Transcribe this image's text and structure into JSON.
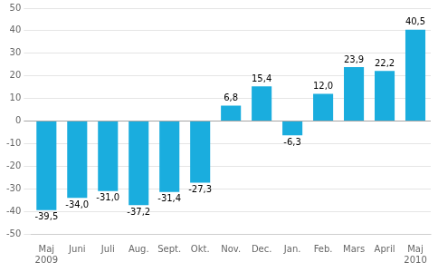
{
  "chart_data": {
    "type": "bar",
    "categories": [
      "Maj",
      "Juni",
      "Juli",
      "Aug.",
      "Sept.",
      "Okt.",
      "Nov.",
      "Dec.",
      "Jan.",
      "Feb.",
      "Mars",
      "April",
      "Maj"
    ],
    "values": [
      -39.5,
      -34.0,
      -31.0,
      -37.2,
      -31.4,
      -27.3,
      6.8,
      15.4,
      -6.3,
      12.0,
      23.9,
      22.2,
      40.5
    ],
    "value_labels": [
      "-39,5",
      "-34,0",
      "-31,0",
      "-37,2",
      "-31,4",
      "-27,3",
      "6,8",
      "15,4",
      "-6,3",
      "12,0",
      "23,9",
      "22,2",
      "40,5"
    ],
    "data_labels": true,
    "color": "#1aadde",
    "ylim": [
      -50,
      50
    ],
    "yticks": [
      -50,
      -40,
      -30,
      -20,
      -10,
      0,
      10,
      20,
      30,
      40,
      50
    ],
    "grid": true,
    "annotations": [
      {
        "text": "2009",
        "x": 0
      },
      {
        "text": "2010",
        "x": 12
      }
    ]
  }
}
